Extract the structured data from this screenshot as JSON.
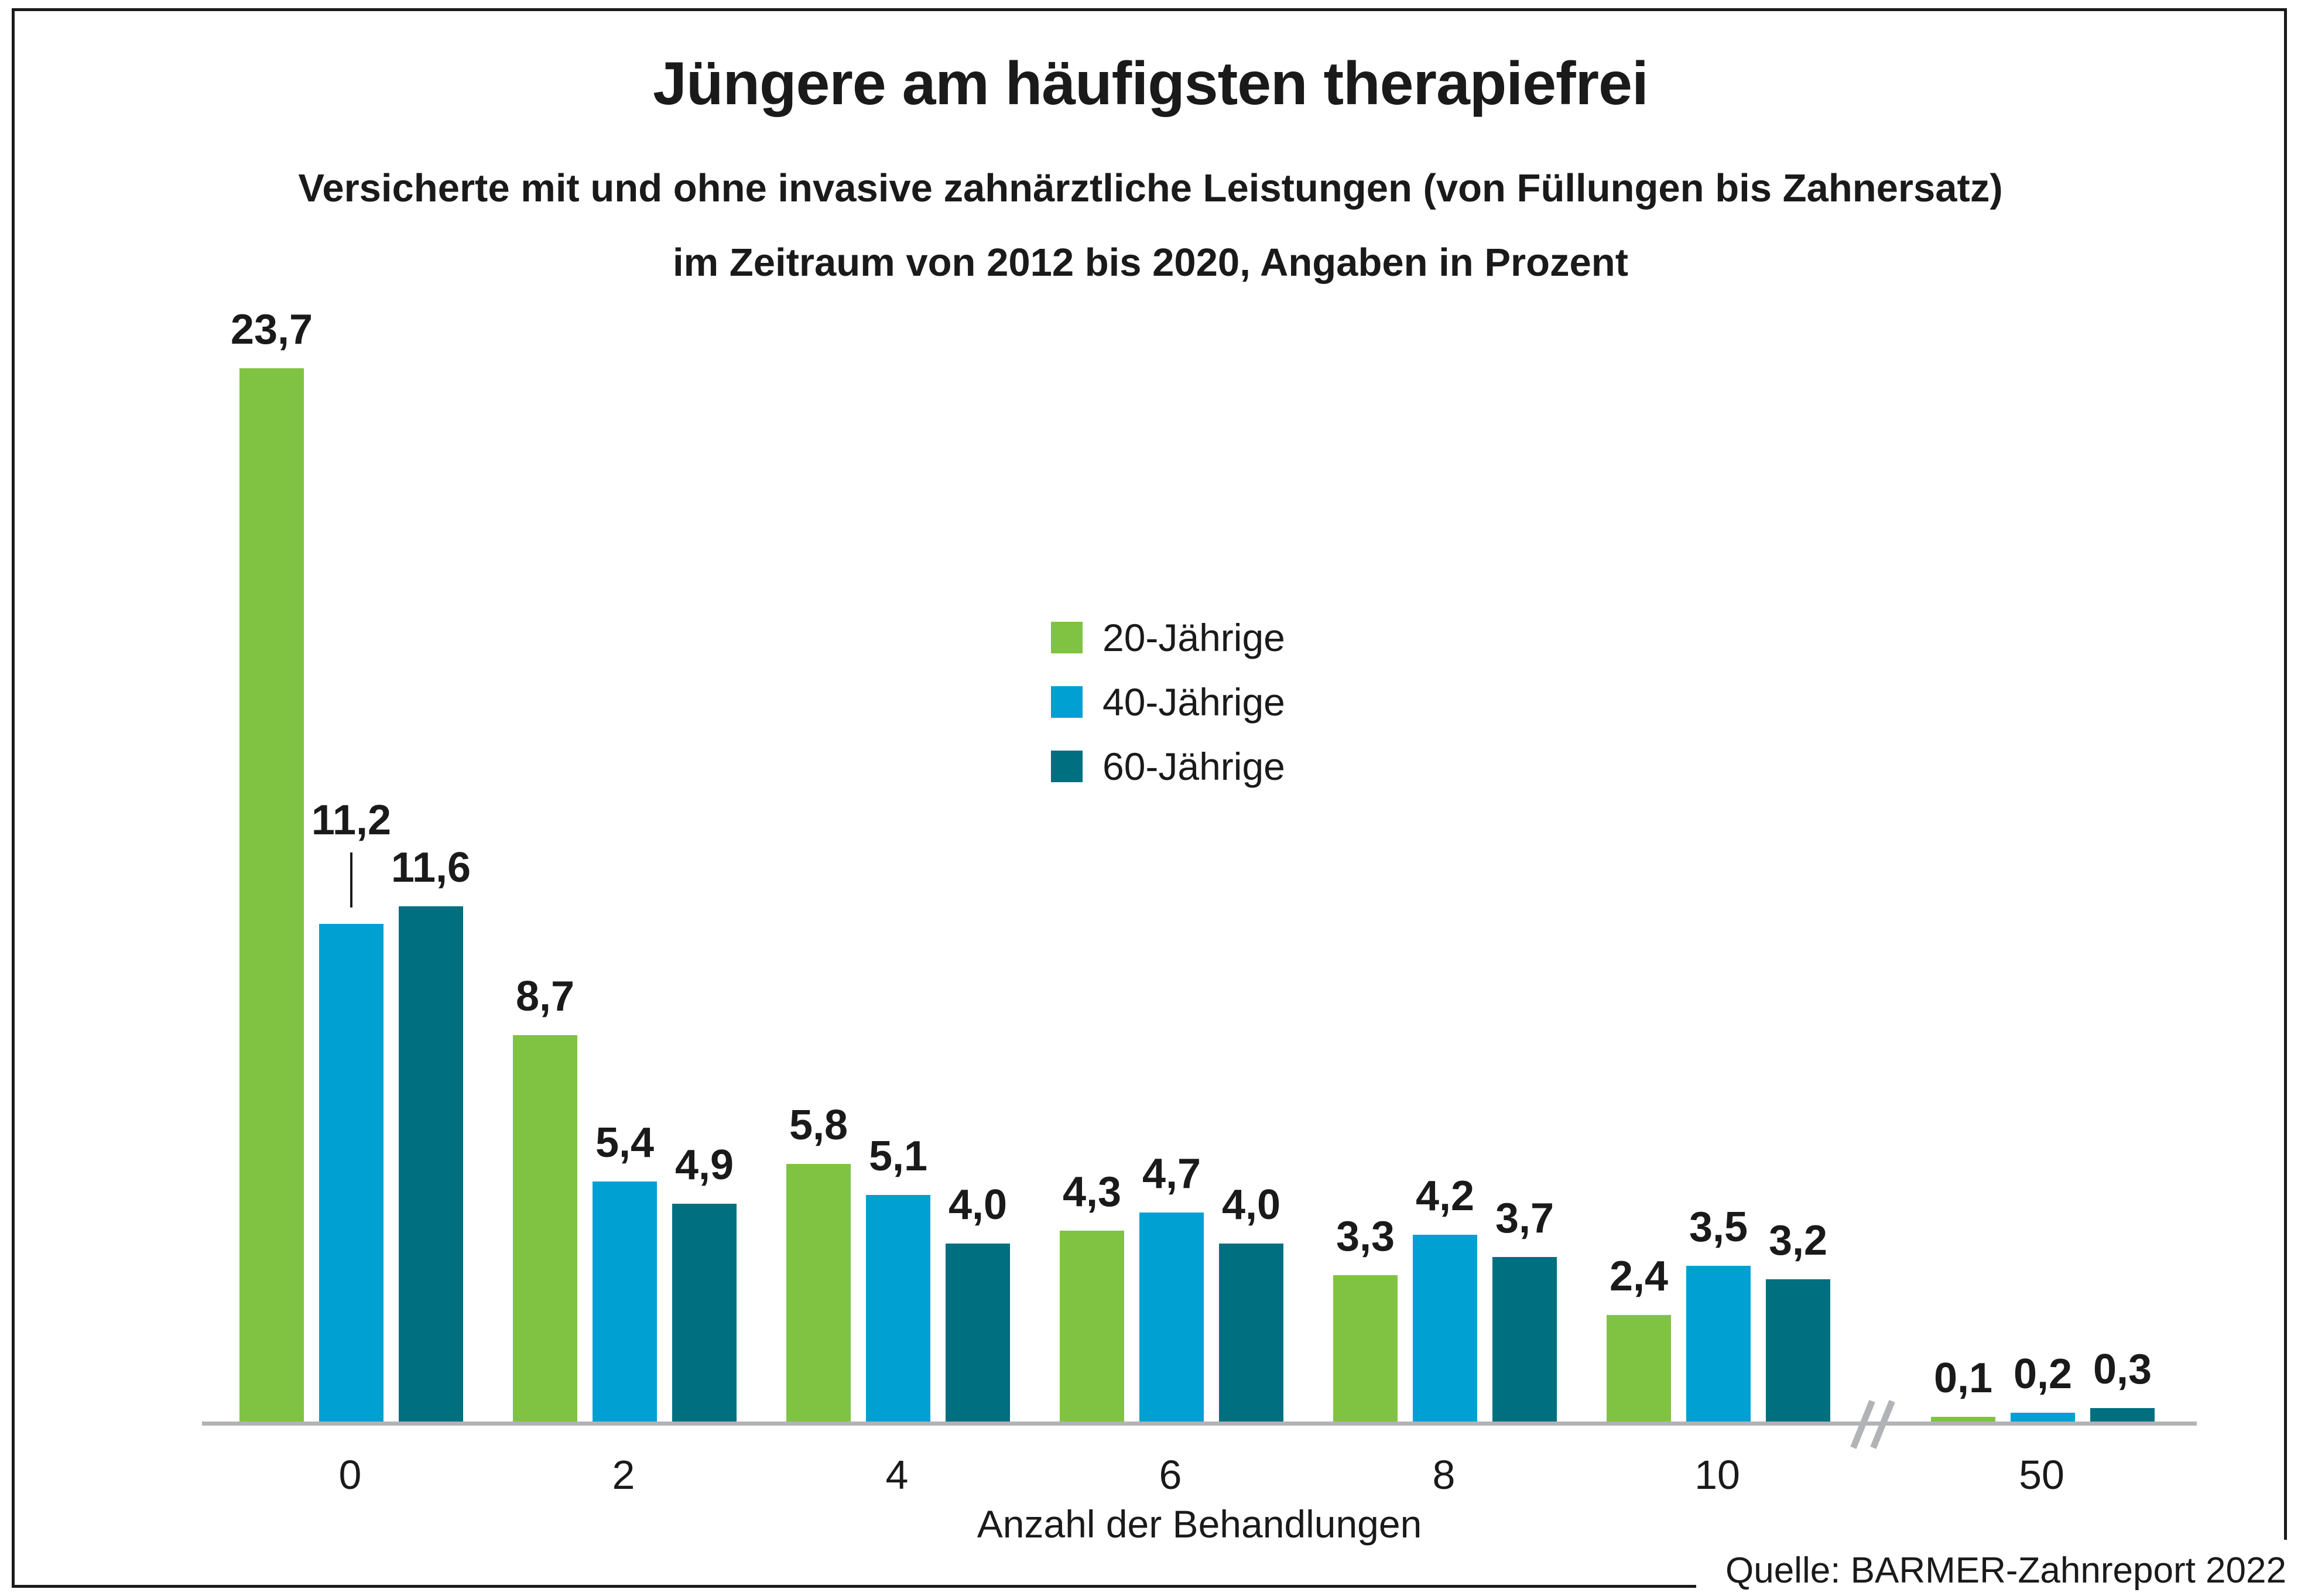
{
  "title": "Jüngere am häufigsten therapiefrei",
  "subtitle_line1": "Versicherte mit und ohne invasive zahnärztliche Leistungen (von Füllungen bis Zahnersatz)",
  "subtitle_line2": "im Zeitraum von 2012 bis 2020, Angaben in Prozent",
  "source": "Quelle: BARMER-Zahnreport 2022",
  "colors": {
    "series_20": "#80C342",
    "series_40": "#00A0D2",
    "series_60": "#006F80",
    "axis": "#b1b3b6",
    "text": "#1a1a1a"
  },
  "chart_data": {
    "type": "bar",
    "title": "Jüngere am häufigsten therapiefrei",
    "xlabel": "Anzahl der Behandlungen",
    "ylabel": "",
    "ylim": [
      0,
      25
    ],
    "grid": false,
    "legend_position": "center-right",
    "decimal_separator": ",",
    "categories": [
      "0",
      "2",
      "4",
      "6",
      "8",
      "10",
      "50"
    ],
    "x_axis_break": {
      "between": [
        "10",
        "50"
      ]
    },
    "series": [
      {
        "name": "20-Jährige",
        "color": "#80C342",
        "values": [
          23.7,
          8.7,
          5.8,
          4.3,
          3.3,
          2.4,
          0.1
        ]
      },
      {
        "name": "40-Jährige",
        "color": "#00A0D2",
        "values": [
          11.2,
          5.4,
          5.1,
          4.7,
          4.2,
          3.5,
          0.2
        ]
      },
      {
        "name": "60-Jährige",
        "color": "#006F80",
        "values": [
          11.6,
          4.9,
          4.0,
          4.0,
          3.7,
          3.2,
          0.3
        ]
      }
    ],
    "label_leader": {
      "category_index": 0,
      "series_index": 1
    }
  }
}
